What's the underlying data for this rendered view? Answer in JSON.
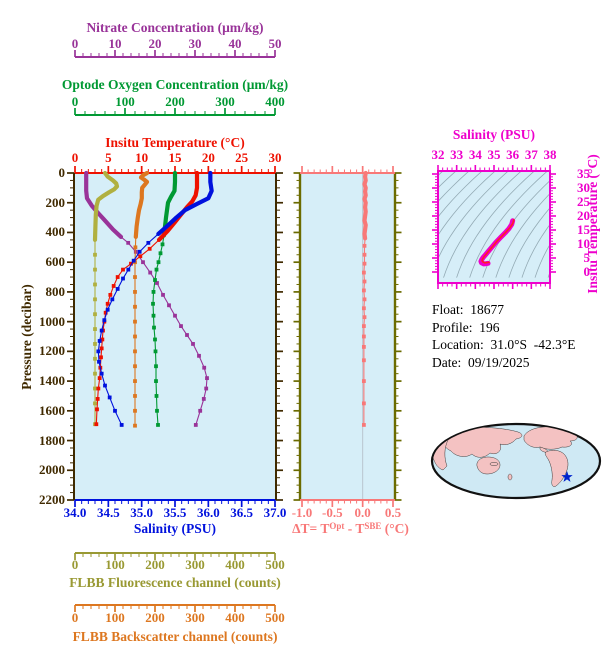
{
  "figure": {
    "plot_bg": "#d6eef8",
    "background": "#ffffff"
  },
  "info": {
    "lines": [
      "Float:  18677",
      "Profile:  196",
      "Location:  31.0°S  -42.3°E",
      "Date:  09/19/2025"
    ]
  },
  "map": {
    "ocean_color": "#cfe9f4",
    "land_color": "#f4c2c2",
    "outline_color": "#111111",
    "marker_color": "#0022cc",
    "marker": "float-location-star"
  },
  "chart_data": {
    "type": "line",
    "charts": [
      {
        "id": "profiles",
        "pressure_axis": {
          "label": "Pressure (decibar)",
          "min": 0,
          "max": 2200,
          "major": 200,
          "minor": 50,
          "color": "#402a00"
        },
        "value_axes": [
          {
            "id": "nitrate",
            "title": "Nitrate Concentration (μm/kg)",
            "color": "#993399",
            "min": 0,
            "max": 50,
            "minor": 2,
            "tick_labels": [
              "0",
              "10",
              "20",
              "30",
              "40",
              "50"
            ]
          },
          {
            "id": "oxygen",
            "title": "Optode Oxygen Concentration (μm/kg)",
            "color": "#009933",
            "min": 0,
            "max": 400,
            "minor": 20,
            "tick_labels": [
              "0",
              "100",
              "200",
              "300",
              "400"
            ]
          },
          {
            "id": "temperature",
            "title": "Insitu Temperature (°C)",
            "color": "#ee1100",
            "min": 0,
            "max": 30,
            "minor": 1,
            "tick_labels": [
              "0",
              "5",
              "10",
              "15",
              "20",
              "25",
              "30"
            ]
          },
          {
            "id": "salinity",
            "title": "Salinity (PSU)",
            "color": "#0011dd",
            "min": 34,
            "max": 37,
            "minor": 0.1,
            "tick_labels": [
              "34.0",
              "34.5",
              "35.0",
              "35.5",
              "36.0",
              "36.5",
              "37.0"
            ]
          },
          {
            "id": "fluorescence",
            "title": "FLBB Fluorescence channel (counts)",
            "color": "#999933",
            "min": 0,
            "max": 500,
            "minor": 20,
            "tick_labels": [
              "0",
              "100",
              "200",
              "300",
              "400",
              "500"
            ]
          },
          {
            "id": "backscatter",
            "title": "FLBB Backscatter channel (counts)",
            "color": "#dd7720",
            "min": 0,
            "max": 500,
            "minor": 20,
            "tick_labels": [
              "0",
              "100",
              "200",
              "300",
              "400",
              "500"
            ]
          }
        ],
        "series": [
          {
            "axis": "nitrate",
            "color": "#993399",
            "points": [
              [
                2.8,
                0
              ],
              [
                2.8,
                60
              ],
              [
                2.8,
                120
              ],
              [
                3.0,
                170
              ],
              [
                4.2,
                220
              ],
              [
                5.8,
                270
              ],
              [
                7.5,
                320
              ],
              [
                9.5,
                380
              ],
              [
                11.5,
                430
              ],
              [
                13.3,
                470
              ],
              [
                15.2,
                530
              ],
              [
                17.0,
                600
              ],
              [
                18.8,
                670
              ],
              [
                20.5,
                740
              ],
              [
                22.0,
                820
              ],
              [
                23.5,
                890
              ],
              [
                25.0,
                960
              ],
              [
                26.5,
                1030
              ],
              [
                28.0,
                1090
              ],
              [
                29.5,
                1150
              ],
              [
                31.0,
                1230
              ],
              [
                32.3,
                1310
              ],
              [
                33.0,
                1380
              ],
              [
                32.8,
                1450
              ],
              [
                32.2,
                1520
              ],
              [
                31.3,
                1600
              ],
              [
                30.2,
                1695
              ]
            ]
          },
          {
            "axis": "fluorescence",
            "color": "#b0b040",
            "points": [
              [
                75,
                0
              ],
              [
                82,
                25
              ],
              [
                95,
                50
              ],
              [
                103,
                70
              ],
              [
                105,
                90
              ],
              [
                98,
                110
              ],
              [
                85,
                130
              ],
              [
                70,
                155
              ],
              [
                58,
                180
              ],
              [
                54,
                220
              ],
              [
                52,
                280
              ],
              [
                51,
                360
              ],
              [
                50,
                450
              ],
              [
                50,
                550
              ],
              [
                50,
                650
              ],
              [
                50,
                750
              ],
              [
                50,
                850
              ],
              [
                50,
                950
              ],
              [
                50,
                1050
              ],
              [
                50,
                1150
              ],
              [
                50,
                1250
              ],
              [
                50,
                1350
              ],
              [
                50,
                1450
              ],
              [
                50,
                1550
              ],
              [
                50,
                1690
              ]
            ]
          },
          {
            "axis": "backscatter",
            "color": "#dd7720",
            "points": [
              [
                180,
                0
              ],
              [
                170,
                15
              ],
              [
                165,
                30
              ],
              [
                173,
                45
              ],
              [
                180,
                60
              ],
              [
                174,
                80
              ],
              [
                168,
                100
              ],
              [
                167,
                130
              ],
              [
                167,
                170
              ],
              [
                164,
                210
              ],
              [
                160,
                250
              ],
              [
                157,
                300
              ],
              [
                154,
                360
              ],
              [
                152,
                430
              ],
              [
                151,
                500
              ],
              [
                150,
                600
              ],
              [
                150,
                700
              ],
              [
                150,
                800
              ],
              [
                150,
                900
              ],
              [
                150,
                1000
              ],
              [
                150,
                1100
              ],
              [
                150,
                1200
              ],
              [
                150,
                1300
              ],
              [
                150,
                1400
              ],
              [
                150,
                1500
              ],
              [
                150,
                1600
              ],
              [
                150,
                1700
              ]
            ]
          },
          {
            "axis": "oxygen",
            "color": "#009933",
            "points": [
              [
                200,
                0
              ],
              [
                200,
                60
              ],
              [
                199,
                120
              ],
              [
                192,
                160
              ],
              [
                186,
                200
              ],
              [
                184,
                250
              ],
              [
                182,
                300
              ],
              [
                180,
                360
              ],
              [
                178,
                420
              ],
              [
                175,
                480
              ],
              [
                171,
                540
              ],
              [
                167,
                600
              ],
              [
                163,
                650
              ],
              [
                160,
                720
              ],
              [
                157,
                800
              ],
              [
                156,
                880
              ],
              [
                157,
                960
              ],
              [
                158,
                1040
              ],
              [
                160,
                1120
              ],
              [
                161,
                1200
              ],
              [
                162,
                1300
              ],
              [
                162,
                1400
              ],
              [
                163,
                1500
              ],
              [
                164,
                1600
              ],
              [
                166,
                1695
              ]
            ]
          },
          {
            "axis": "temperature",
            "color": "#ee1100",
            "points": [
              [
                18.3,
                0
              ],
              [
                18.3,
                50
              ],
              [
                18.3,
                100
              ],
              [
                18.1,
                150
              ],
              [
                17.6,
                190
              ],
              [
                16.8,
                230
              ],
              [
                15.9,
                280
              ],
              [
                15.0,
                330
              ],
              [
                13.9,
                390
              ],
              [
                12.6,
                450
              ],
              [
                11.2,
                510
              ],
              [
                9.8,
                560
              ],
              [
                8.4,
                610
              ],
              [
                7.2,
                650
              ],
              [
                6.4,
                700
              ],
              [
                5.8,
                760
              ],
              [
                5.3,
                820
              ],
              [
                4.9,
                880
              ],
              [
                4.6,
                940
              ],
              [
                4.4,
                1000
              ],
              [
                4.2,
                1060
              ],
              [
                4.1,
                1120
              ],
              [
                4.0,
                1180
              ],
              [
                3.9,
                1240
              ],
              [
                3.8,
                1310
              ],
              [
                3.7,
                1380
              ],
              [
                3.5,
                1450
              ],
              [
                3.4,
                1520
              ],
              [
                3.3,
                1590
              ],
              [
                3.2,
                1690
              ]
            ]
          },
          {
            "axis": "salinity",
            "color": "#0011dd",
            "points": [
              [
                36.03,
                0
              ],
              [
                36.03,
                60
              ],
              [
                36.05,
                120
              ],
              [
                36.0,
                170
              ],
              [
                35.82,
                210
              ],
              [
                35.65,
                250
              ],
              [
                35.52,
                300
              ],
              [
                35.4,
                350
              ],
              [
                35.25,
                410
              ],
              [
                35.1,
                470
              ],
              [
                34.97,
                530
              ],
              [
                34.88,
                590
              ],
              [
                34.8,
                650
              ],
              [
                34.72,
                710
              ],
              [
                34.64,
                780
              ],
              [
                34.56,
                850
              ],
              [
                34.49,
                920
              ],
              [
                34.44,
                990
              ],
              [
                34.4,
                1060
              ],
              [
                34.37,
                1130
              ],
              [
                34.35,
                1200
              ],
              [
                34.36,
                1270
              ],
              [
                34.4,
                1350
              ],
              [
                34.45,
                1430
              ],
              [
                34.52,
                1510
              ],
              [
                34.6,
                1600
              ],
              [
                34.7,
                1695
              ]
            ]
          }
        ]
      },
      {
        "id": "delta_t",
        "title_parts": {
          "p1": "ΔT= T",
          "sup1": "Opt",
          "p2": " - T",
          "sup2": "SBE",
          "p3": " (°C)"
        },
        "color": "#f87878",
        "frame_color": "#6b6b00",
        "zero_line_color": "#b9c6cf",
        "min": -1.0,
        "max": 0.5,
        "minor": 0.1,
        "tick_labels": [
          "-1.0",
          "-0.5",
          "0.0",
          "0.5"
        ],
        "points": [
          [
            0.05,
            0
          ],
          [
            0.04,
            25
          ],
          [
            0.05,
            50
          ],
          [
            0.03,
            75
          ],
          [
            0.05,
            100
          ],
          [
            0.04,
            125
          ],
          [
            0.05,
            150
          ],
          [
            0.03,
            175
          ],
          [
            0.05,
            200
          ],
          [
            0.04,
            230
          ],
          [
            0.05,
            260
          ],
          [
            0.04,
            290
          ],
          [
            0.03,
            320
          ],
          [
            0.05,
            350
          ],
          [
            0.04,
            380
          ],
          [
            0.03,
            410
          ],
          [
            0.04,
            440
          ],
          [
            0.03,
            490
          ],
          [
            0.03,
            550
          ],
          [
            0.03,
            610
          ],
          [
            0.02,
            670
          ],
          [
            0.03,
            730
          ],
          [
            0.02,
            790
          ],
          [
            0.03,
            850
          ],
          [
            0.02,
            910
          ],
          [
            0.03,
            970
          ],
          [
            0.02,
            1030
          ],
          [
            0.02,
            1100
          ],
          [
            0.02,
            1170
          ],
          [
            0.02,
            1260
          ],
          [
            0.02,
            1400
          ],
          [
            0.02,
            1550
          ],
          [
            0.02,
            1695
          ]
        ]
      },
      {
        "id": "ts_diagram",
        "title": "Salinity (PSU)",
        "y_label": "Insitu Temperature (°C)",
        "color": "#ee00cc",
        "curve_core_color": "#ff2020",
        "contour_color": "#93aab4",
        "x_min": 32,
        "x_max": 38,
        "x_tick_labels": [
          "32",
          "33",
          "34",
          "35",
          "36",
          "37",
          "38"
        ],
        "y_min": 0,
        "y_max": 35,
        "y_tick_labels": [
          "0",
          "5",
          "10",
          "15",
          "20",
          "25",
          "30",
          "35"
        ],
        "curve": [
          [
            36.0,
            18.3
          ],
          [
            35.95,
            17.0
          ],
          [
            35.8,
            15.5
          ],
          [
            35.6,
            14.0
          ],
          [
            35.35,
            12.3
          ],
          [
            35.1,
            10.6
          ],
          [
            34.9,
            9.0
          ],
          [
            34.7,
            7.4
          ],
          [
            34.55,
            6.2
          ],
          [
            34.42,
            5.2
          ],
          [
            34.34,
            4.4
          ],
          [
            34.3,
            3.8
          ],
          [
            34.33,
            3.3
          ],
          [
            34.45,
            2.9
          ],
          [
            34.6,
            3.0
          ],
          [
            34.68,
            3.1
          ]
        ]
      }
    ]
  }
}
